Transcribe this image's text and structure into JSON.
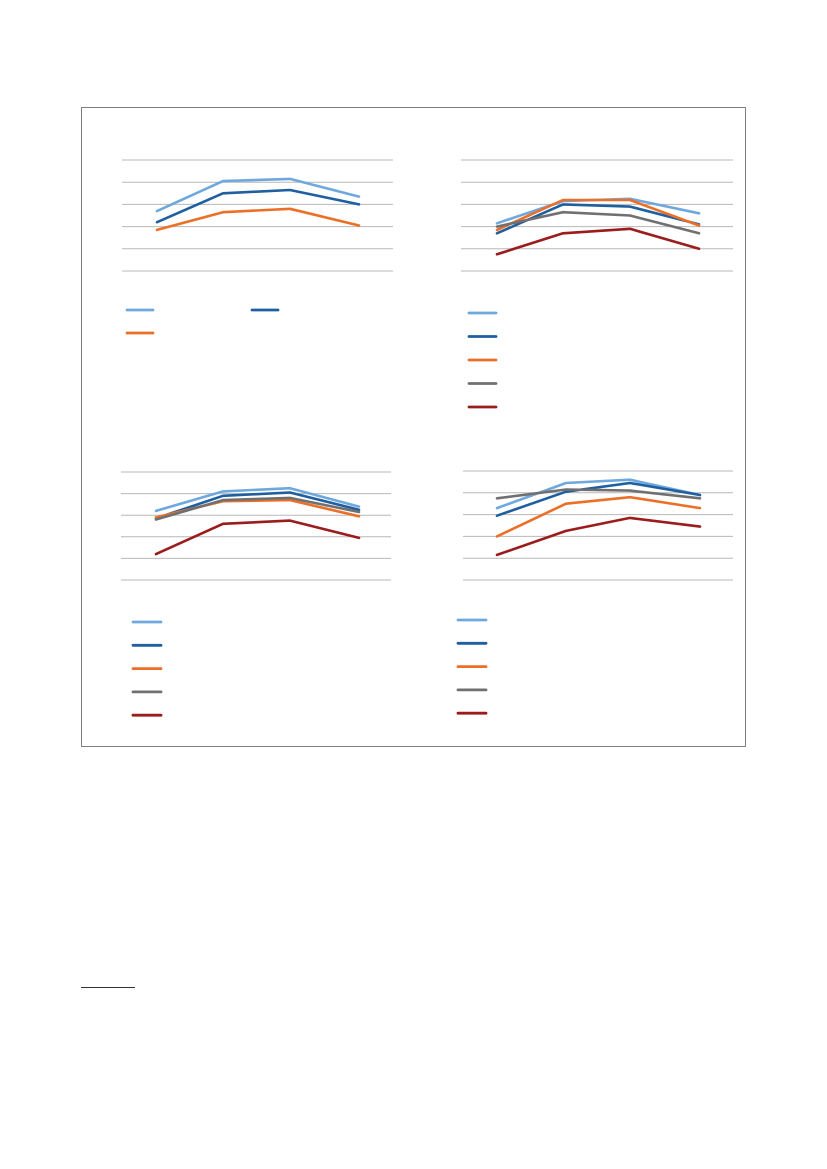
{
  "chart_data": [
    {
      "type": "line",
      "x": [
        1,
        2,
        3,
        4
      ],
      "ylim": [
        0,
        5
      ],
      "grid": true,
      "legend_placement": "bottom",
      "series": [
        {
          "color": "#6fa8dc",
          "values": [
            2.7,
            4.05,
            4.15,
            3.35
          ]
        },
        {
          "color": "#1f5fa0",
          "values": [
            2.2,
            3.5,
            3.65,
            3.0
          ]
        },
        {
          "color": "#ec6f28",
          "values": [
            1.85,
            2.65,
            2.8,
            2.05
          ]
        }
      ]
    },
    {
      "type": "line",
      "x": [
        1,
        2,
        3,
        4
      ],
      "ylim": [
        0,
        5
      ],
      "grid": true,
      "legend_placement": "bottom",
      "series": [
        {
          "color": "#6fa8dc",
          "values": [
            2.15,
            3.15,
            3.25,
            2.6
          ]
        },
        {
          "color": "#1f5fa0",
          "values": [
            1.7,
            3.0,
            2.9,
            2.1
          ]
        },
        {
          "color": "#ec6f28",
          "values": [
            1.85,
            3.2,
            3.2,
            2.05
          ]
        },
        {
          "color": "#707070",
          "values": [
            2.0,
            2.65,
            2.5,
            1.7
          ]
        },
        {
          "color": "#9b1c1c",
          "values": [
            0.75,
            1.7,
            1.9,
            1.0
          ]
        }
      ]
    },
    {
      "type": "line",
      "x": [
        1,
        2,
        3,
        4
      ],
      "ylim": [
        0,
        5
      ],
      "grid": true,
      "legend_placement": "bottom",
      "series": [
        {
          "color": "#6fa8dc",
          "values": [
            3.2,
            4.1,
            4.25,
            3.4
          ]
        },
        {
          "color": "#1f5fa0",
          "values": [
            2.85,
            3.9,
            4.05,
            3.25
          ]
        },
        {
          "color": "#ec6f28",
          "values": [
            2.9,
            3.65,
            3.7,
            2.95
          ]
        },
        {
          "color": "#707070",
          "values": [
            2.8,
            3.7,
            3.8,
            3.15
          ]
        },
        {
          "color": "#9b1c1c",
          "values": [
            1.2,
            2.6,
            2.75,
            1.95
          ]
        }
      ]
    },
    {
      "type": "line",
      "x": [
        1,
        2,
        3,
        4
      ],
      "ylim": [
        0,
        5
      ],
      "grid": true,
      "legend_placement": "bottom",
      "series": [
        {
          "color": "#6fa8dc",
          "values": [
            3.3,
            4.45,
            4.6,
            3.9
          ]
        },
        {
          "color": "#1f5fa0",
          "values": [
            2.95,
            4.05,
            4.45,
            3.9
          ]
        },
        {
          "color": "#ec6f28",
          "values": [
            2.0,
            3.5,
            3.8,
            3.3
          ]
        },
        {
          "color": "#707070",
          "values": [
            3.75,
            4.15,
            4.1,
            3.75
          ]
        },
        {
          "color": "#9b1c1c",
          "values": [
            1.15,
            2.25,
            2.85,
            2.45
          ]
        }
      ]
    }
  ]
}
